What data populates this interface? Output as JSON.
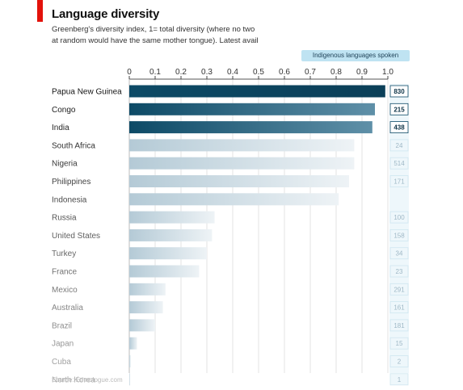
{
  "title": "Language diversity",
  "subtitle_line1": "Greenberg's diversity index, 1= total diversity (where no two",
  "subtitle_line2": "at random would have the same mother tongue). Latest avail",
  "legend_label": "Indigenous languages spoken",
  "source": "Source: Ethnologue.com",
  "colors": {
    "accent_red": "#e3120b",
    "bar_dark": "#0d4a66",
    "pill": "#bfe3f2"
  },
  "chart_data": {
    "type": "bar",
    "orientation": "horizontal",
    "title": "Language diversity",
    "xlim": [
      0,
      1.0
    ],
    "x_ticks": [
      "0",
      "0.1",
      "0.2",
      "0.3",
      "0.4",
      "0.5",
      "0.6",
      "0.7",
      "0.8",
      "0.9",
      "1.0"
    ],
    "grid": true,
    "categories": [
      "Papua New Guinea",
      "Congo",
      "India",
      "South Africa",
      "Nigeria",
      "Philippines",
      "Indonesia",
      "Russia",
      "United States",
      "Turkey",
      "France",
      "Mexico",
      "Australia",
      "Brazil",
      "Japan",
      "Cuba",
      "North Korea"
    ],
    "values": [
      0.99,
      0.95,
      0.94,
      0.87,
      0.87,
      0.85,
      0.81,
      0.33,
      0.32,
      0.3,
      0.27,
      0.14,
      0.13,
      0.1,
      0.03,
      0.005,
      0.003
    ],
    "languages_spoken": [
      "830",
      "215",
      "438",
      "24",
      "514",
      "171",
      "",
      "100",
      "158",
      "34",
      "23",
      "291",
      "161",
      "181",
      "15",
      "2",
      "1"
    ]
  }
}
